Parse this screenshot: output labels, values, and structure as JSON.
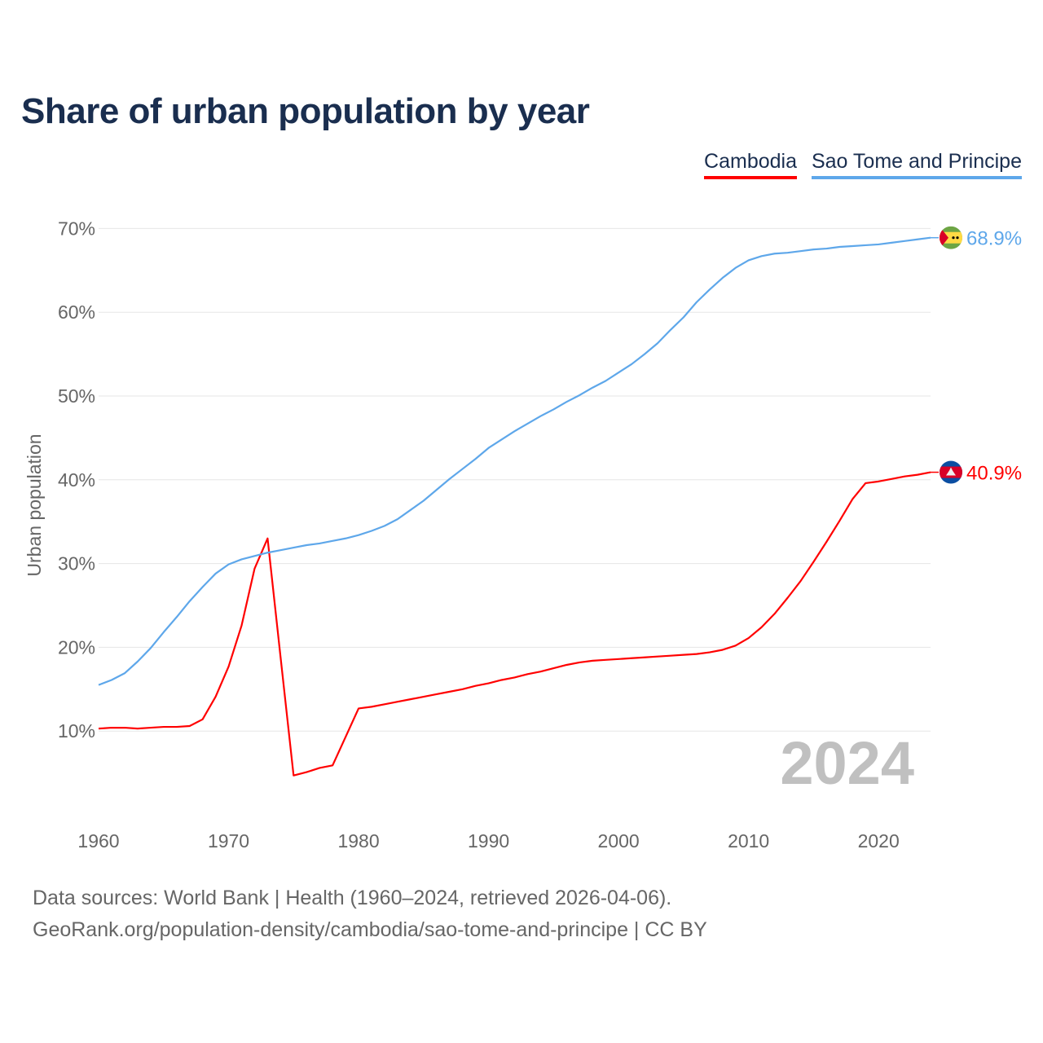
{
  "chart_data": {
    "type": "line",
    "title": "Share of urban population by year",
    "xlabel": "",
    "ylabel": "Urban population",
    "ylim": [
      0,
      72
    ],
    "xlim": [
      1960,
      2024
    ],
    "yticks": [
      "10%",
      "20%",
      "30%",
      "40%",
      "50%",
      "60%",
      "70%"
    ],
    "ytick_values": [
      10,
      20,
      30,
      40,
      50,
      60,
      70
    ],
    "xticks": [
      "1960",
      "1970",
      "1980",
      "1990",
      "2000",
      "2010",
      "2020"
    ],
    "grid": true,
    "legend_position": "top-right",
    "year_watermark": "2024",
    "x": [
      1960,
      1961,
      1962,
      1963,
      1964,
      1965,
      1966,
      1967,
      1968,
      1969,
      1970,
      1971,
      1972,
      1973,
      1974,
      1975,
      1976,
      1977,
      1978,
      1979,
      1980,
      1981,
      1982,
      1983,
      1984,
      1985,
      1986,
      1987,
      1988,
      1989,
      1990,
      1991,
      1992,
      1993,
      1994,
      1995,
      1996,
      1997,
      1998,
      1999,
      2000,
      2001,
      2002,
      2003,
      2004,
      2005,
      2006,
      2007,
      2008,
      2009,
      2010,
      2011,
      2012,
      2013,
      2014,
      2015,
      2016,
      2017,
      2018,
      2019,
      2020,
      2021,
      2022,
      2023,
      2024
    ],
    "series": [
      {
        "name": "Cambodia",
        "color": "#ff0000",
        "end_label": "40.9%",
        "flag": "cambodia-flag",
        "values": [
          10.3,
          10.4,
          10.4,
          10.3,
          10.4,
          10.5,
          10.5,
          10.6,
          11.4,
          14.1,
          17.7,
          22.6,
          29.4,
          33.0,
          18.8,
          4.7,
          5.1,
          5.6,
          5.9,
          9.3,
          12.7,
          12.9,
          13.2,
          13.5,
          13.8,
          14.1,
          14.4,
          14.7,
          15.0,
          15.4,
          15.7,
          16.1,
          16.4,
          16.8,
          17.1,
          17.5,
          17.9,
          18.2,
          18.4,
          18.5,
          18.6,
          18.7,
          18.8,
          18.9,
          19.0,
          19.1,
          19.2,
          19.4,
          19.7,
          20.2,
          21.1,
          22.4,
          24.0,
          25.9,
          27.9,
          30.2,
          32.6,
          35.1,
          37.7,
          39.6,
          39.8,
          40.1,
          40.4,
          40.6,
          40.9
        ]
      },
      {
        "name": "Sao Tome and Principe",
        "color": "#5ea7ea",
        "end_label": "68.9%",
        "flag": "sao-tome-flag",
        "values": [
          15.5,
          16.1,
          16.9,
          18.3,
          19.9,
          21.8,
          23.6,
          25.5,
          27.2,
          28.8,
          29.9,
          30.5,
          30.9,
          31.3,
          31.6,
          31.9,
          32.2,
          32.4,
          32.7,
          33.0,
          33.4,
          33.9,
          34.5,
          35.3,
          36.4,
          37.5,
          38.8,
          40.1,
          41.3,
          42.5,
          43.8,
          44.8,
          45.8,
          46.7,
          47.6,
          48.4,
          49.3,
          50.1,
          51.0,
          51.8,
          52.8,
          53.8,
          55.0,
          56.3,
          57.9,
          59.4,
          61.2,
          62.7,
          64.1,
          65.3,
          66.2,
          66.7,
          67.0,
          67.1,
          67.3,
          67.5,
          67.6,
          67.8,
          67.9,
          68.0,
          68.1,
          68.3,
          68.5,
          68.7,
          68.9
        ]
      }
    ]
  },
  "footer": {
    "line1": "Data sources: World Bank | Health (1960–2024, retrieved 2026-04-06).",
    "line2": "GeoRank.org/population-density/cambodia/sao-tome-and-principe | CC BY"
  }
}
